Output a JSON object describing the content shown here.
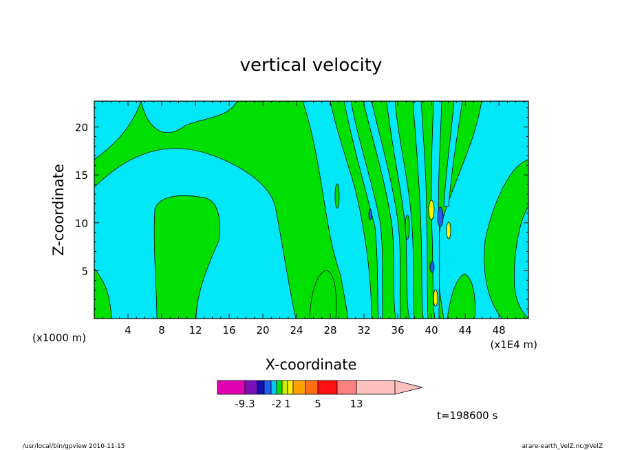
{
  "chart_data": {
    "type": "heatmap",
    "title": "vertical velocity",
    "xlabel": "X-coordinate",
    "ylabel": "Z-coordinate",
    "x_unit_left": "(x1000 m)",
    "x_unit_right": "(x1E4 m)",
    "xlim": [
      0,
      51.5
    ],
    "ylim": [
      0,
      22.7
    ],
    "x_ticks": [
      4,
      8,
      12,
      16,
      20,
      24,
      28,
      32,
      36,
      40,
      44,
      48
    ],
    "y_ticks": [
      5,
      10,
      15,
      20
    ],
    "colorbar": {
      "labels": [
        "-9.3",
        "-2",
        "1",
        "5",
        "13"
      ],
      "colors": [
        "#e000b0",
        "#7a10b8",
        "#1010b0",
        "#2060f0",
        "#00c8f0",
        "#00e000",
        "#c8f000",
        "#ffee00",
        "#ffa000",
        "#ff7010",
        "#ff1010",
        "#ff8080",
        "#ffc0c0"
      ]
    },
    "time_label": "t=198600 s"
  },
  "footer": {
    "left": "/usr/local/bin/gpview   2010-11-15",
    "right": "arare-earth_VelZ.nc@VelZ"
  }
}
